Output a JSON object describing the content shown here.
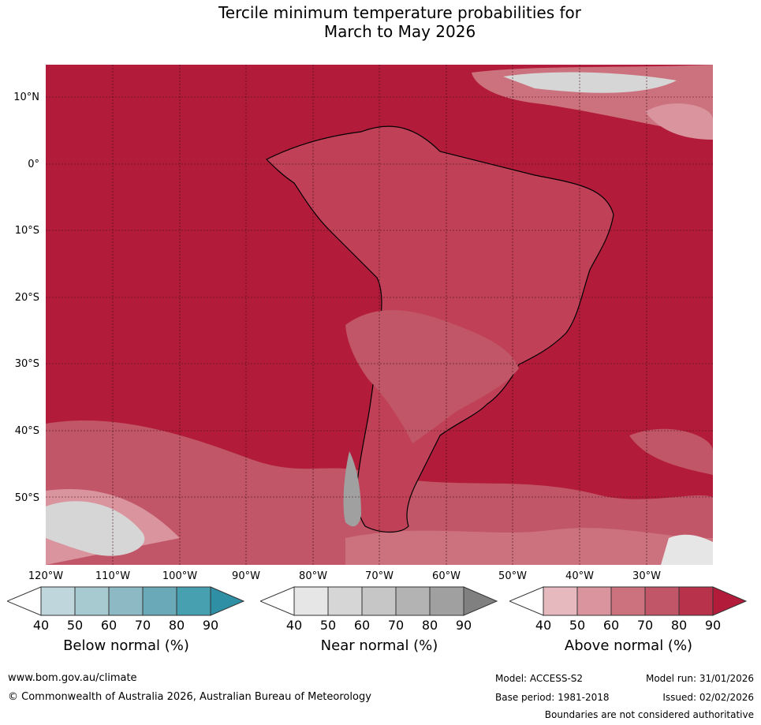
{
  "title": {
    "line1": "Tercile minimum temperature probabilities for",
    "line2": "March to May 2026"
  },
  "map": {
    "lat_labels": [
      "10°N",
      "0°",
      "10°S",
      "20°S",
      "30°S",
      "40°S",
      "50°S"
    ],
    "lon_labels": [
      "120°W",
      "110°W",
      "100°W",
      "90°W",
      "80°W",
      "70°W",
      "60°W",
      "50°W",
      "40°W",
      "30°W"
    ]
  },
  "colorbars": [
    {
      "title": "Below normal (%)",
      "ticks": [
        "40",
        "50",
        "60",
        "70",
        "80",
        "90"
      ],
      "colors": [
        "#bfd6dc",
        "#a7c9d0",
        "#8cb9c3",
        "#6aa9b8",
        "#47a0b0",
        "#2f8fa4"
      ]
    },
    {
      "title": "Near normal (%)",
      "ticks": [
        "40",
        "50",
        "60",
        "70",
        "80",
        "90"
      ],
      "colors": [
        "#e6e6e6",
        "#d6d6d6",
        "#c6c6c6",
        "#b3b3b3",
        "#a0a0a0",
        "#808080"
      ]
    },
    {
      "title": "Above normal (%)",
      "ticks": [
        "40",
        "50",
        "60",
        "70",
        "80",
        "90"
      ],
      "colors": [
        "#e6b9bf",
        "#d9949e",
        "#cc727e",
        "#c05667",
        "#b8324b",
        "#b21c3a"
      ]
    }
  ],
  "footer": {
    "website": "www.bom.gov.au/climate",
    "copyright": "© Commonwealth of Australia 2026, Australian Bureau of Meteorology",
    "model": "Model: ACCESS-S2",
    "model_run": "Model run: 31/01/2026",
    "base_period": "Base period: 1981-2018",
    "issued": "Issued: 02/02/2026",
    "disclaimer": "Boundaries are not considered authoritative"
  }
}
